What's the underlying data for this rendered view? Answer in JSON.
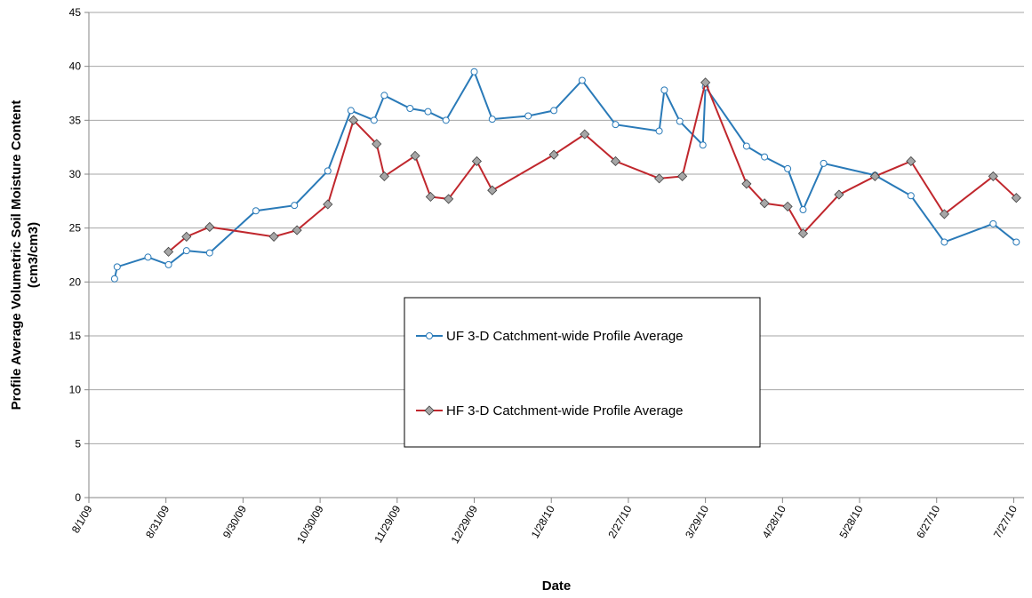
{
  "chart_data": {
    "type": "line",
    "xlabel": "Date",
    "ylabel": [
      "Profile Average Volumetric Soil Moisture Content",
      "(cm3/cm3)"
    ],
    "xlim": [
      "2009-08-01",
      "2010-07-31"
    ],
    "xticks": [
      {
        "value": "2009-08-01",
        "label": "8/1/09"
      },
      {
        "value": "2009-08-31",
        "label": "8/31/09"
      },
      {
        "value": "2009-09-30",
        "label": "9/30/09"
      },
      {
        "value": "2009-10-30",
        "label": "10/30/09"
      },
      {
        "value": "2009-11-29",
        "label": "11/29/09"
      },
      {
        "value": "2009-12-29",
        "label": "12/29/09"
      },
      {
        "value": "2010-01-28",
        "label": "1/28/10"
      },
      {
        "value": "2010-02-27",
        "label": "2/27/10"
      },
      {
        "value": "2010-03-29",
        "label": "3/29/10"
      },
      {
        "value": "2010-04-28",
        "label": "4/28/10"
      },
      {
        "value": "2010-05-28",
        "label": "5/28/10"
      },
      {
        "value": "2010-06-27",
        "label": "6/27/10"
      },
      {
        "value": "2010-07-27",
        "label": "7/27/10"
      }
    ],
    "ylim": [
      0,
      45
    ],
    "yticks": [
      0,
      5,
      10,
      15,
      20,
      25,
      30,
      35,
      40,
      45
    ],
    "grid": true,
    "legend": "center",
    "series": [
      {
        "name": "UF 3-D Catchment-wide Profile Average",
        "color": "#2a7ab8",
        "marker": "circle",
        "x": [
          "2009-08-11",
          "2009-08-12",
          "2009-08-24",
          "2009-09-01",
          "2009-09-08",
          "2009-09-17",
          "2009-10-05",
          "2009-10-20",
          "2009-11-02",
          "2009-11-11",
          "2009-11-20",
          "2009-11-24",
          "2009-12-04",
          "2009-12-11",
          "2009-12-18",
          "2009-12-29",
          "2010-01-05",
          "2010-01-19",
          "2010-01-29",
          "2010-02-09",
          "2010-02-22",
          "2010-03-11",
          "2010-03-13",
          "2010-03-19",
          "2010-03-28",
          "2010-03-29",
          "2010-04-14",
          "2010-04-21",
          "2010-04-30",
          "2010-05-06",
          "2010-05-14",
          "2010-06-03",
          "2010-06-17",
          "2010-06-30",
          "2010-07-19",
          "2010-07-28"
        ],
        "values": [
          20.3,
          21.4,
          22.3,
          21.6,
          22.9,
          22.7,
          26.6,
          27.1,
          30.3,
          35.9,
          35.0,
          37.3,
          36.1,
          35.8,
          35.0,
          39.5,
          35.1,
          35.4,
          35.9,
          38.7,
          34.6,
          34.0,
          37.8,
          34.9,
          32.7,
          38.1,
          32.6,
          31.6,
          30.5,
          26.7,
          31.0,
          29.9,
          28.0,
          23.7,
          25.4,
          23.7
        ]
      },
      {
        "name": "HF 3-D Catchment-wide Profile Average",
        "color": "#c0272d",
        "marker": "diamond",
        "x": [
          "2009-09-01",
          "2009-09-08",
          "2009-09-17",
          "2009-10-12",
          "2009-10-21",
          "2009-11-02",
          "2009-11-12",
          "2009-11-21",
          "2009-11-24",
          "2009-12-06",
          "2009-12-12",
          "2009-12-19",
          "2009-12-30",
          "2010-01-05",
          "2010-01-29",
          "2010-02-10",
          "2010-02-22",
          "2010-03-11",
          "2010-03-20",
          "2010-03-29",
          "2010-04-14",
          "2010-04-21",
          "2010-04-30",
          "2010-05-06",
          "2010-05-20",
          "2010-06-03",
          "2010-06-17",
          "2010-06-30",
          "2010-07-19",
          "2010-07-28"
        ],
        "values": [
          22.8,
          24.2,
          25.1,
          24.2,
          24.8,
          27.2,
          35.0,
          32.8,
          29.8,
          31.7,
          27.9,
          27.7,
          31.2,
          28.5,
          31.8,
          33.7,
          31.2,
          29.6,
          29.8,
          38.5,
          29.1,
          27.3,
          27.0,
          24.5,
          28.1,
          29.8,
          31.2,
          26.3,
          29.8,
          27.8
        ]
      }
    ]
  }
}
